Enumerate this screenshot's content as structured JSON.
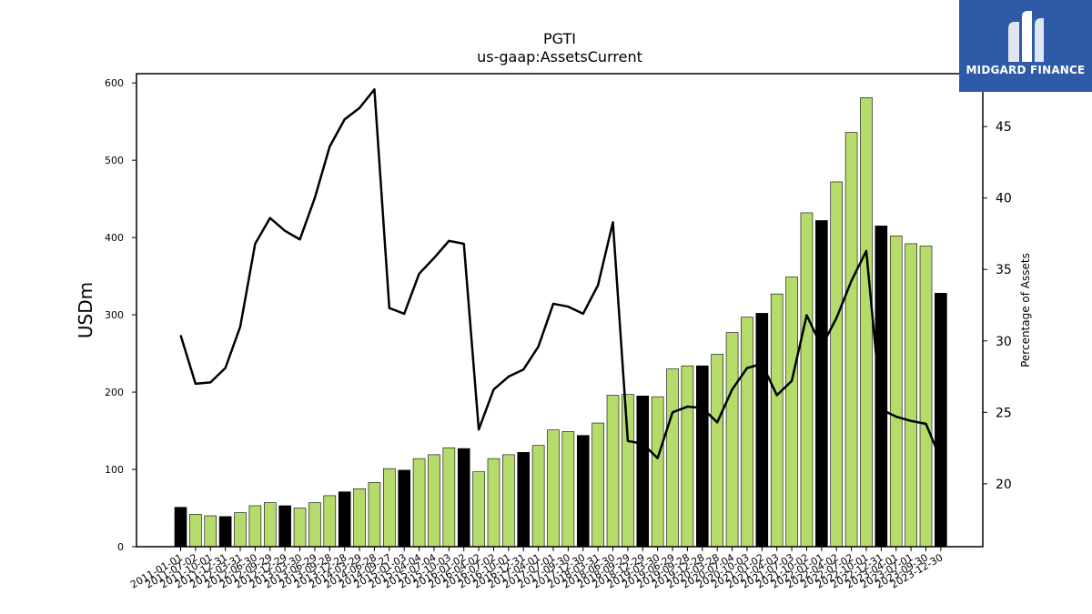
{
  "chart_data": {
    "type": "bar+line",
    "title": "PGTI",
    "subtitle": "us-gaap:AssetsCurrent",
    "ylabel": "USDm",
    "y2label": "Percentage of Assets",
    "ylim": [
      0,
      612
    ],
    "y2lim": [
      15.6,
      48.7
    ],
    "yticks": [
      0,
      100,
      200,
      300,
      400,
      500,
      600
    ],
    "y2ticks": [
      20,
      25,
      30,
      35,
      40,
      45
    ],
    "grid": false,
    "colors": {
      "bar_quarter": "#b5dc6b",
      "bar_fy": "#000000",
      "line": "#000000"
    },
    "categories": [
      "2011-01-01",
      "2011-07-02",
      "2011-10-01",
      "2011-12-31",
      "2012-03-31",
      "2012-06-30",
      "2012-09-29",
      "2012-12-29",
      "2013-03-30",
      "2013-06-29",
      "2013-09-28",
      "2013-12-28",
      "2014-03-29",
      "2014-06-28",
      "2014-09-27",
      "2015-01-03",
      "2015-04-04",
      "2015-07-04",
      "2015-10-03",
      "2016-01-02",
      "2016-04-02",
      "2016-07-02",
      "2016-10-01",
      "2016-12-31",
      "2017-04-01",
      "2017-07-01",
      "2017-09-30",
      "2017-12-30",
      "2018-03-31",
      "2018-06-30",
      "2018-09-29",
      "2018-12-29",
      "2019-03-30",
      "2019-06-29",
      "2019-09-28",
      "2019-12-28",
      "2020-03-28",
      "2020-07-04",
      "2020-10-03",
      "2021-01-02",
      "2021-04-03",
      "2021-07-03",
      "2021-10-02",
      "2022-01-01",
      "2022-04-02",
      "2022-07-02",
      "2022-10-01",
      "2022-12-31",
      "2023-04-01",
      "2023-07-01",
      "2023-09-30",
      "2023-12-30"
    ],
    "values": [
      51,
      42,
      40,
      39,
      44,
      53,
      57,
      53,
      50,
      57,
      66,
      71,
      75,
      83,
      101,
      99,
      114,
      119,
      128,
      127,
      97,
      114,
      119,
      122,
      131,
      151,
      149,
      144,
      160,
      196,
      197,
      195,
      194,
      230,
      234,
      234,
      249,
      277,
      297,
      302,
      327,
      349,
      432,
      422,
      472,
      536,
      581,
      415,
      402,
      392,
      389,
      328
    ],
    "fiscal_year_end": [
      true,
      false,
      false,
      true,
      false,
      false,
      false,
      true,
      false,
      false,
      false,
      true,
      false,
      false,
      false,
      true,
      false,
      false,
      false,
      true,
      false,
      false,
      false,
      true,
      false,
      false,
      false,
      true,
      false,
      false,
      false,
      true,
      false,
      false,
      false,
      true,
      false,
      false,
      false,
      true,
      false,
      false,
      false,
      true,
      false,
      false,
      false,
      true,
      false,
      false,
      false,
      true
    ],
    "pct_of_assets": [
      30.4,
      27.0,
      27.1,
      28.1,
      31.0,
      36.8,
      38.6,
      37.7,
      37.1,
      40.0,
      43.6,
      45.5,
      46.3,
      47.6,
      32.3,
      31.9,
      34.7,
      35.8,
      37.0,
      36.8,
      23.8,
      26.6,
      27.5,
      28.0,
      29.6,
      32.6,
      32.4,
      31.9,
      33.9,
      38.3,
      23.0,
      22.8,
      21.8,
      25.0,
      25.4,
      25.3,
      24.3,
      26.6,
      28.1,
      28.4,
      26.2,
      27.2,
      31.8,
      29.6,
      31.6,
      34.2,
      36.3,
      25.2,
      24.7,
      24.4,
      24.2,
      21.7
    ],
    "logo_text": "MIDGARD FINANCE"
  }
}
